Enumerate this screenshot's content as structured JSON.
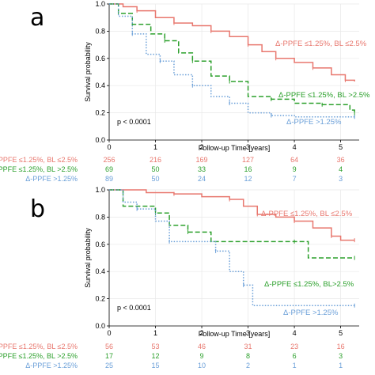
{
  "colors": {
    "bl_low": "#e8776e",
    "bl_high": "#2ca02c",
    "ppfe_high": "#6a9fd8"
  },
  "chart_data": [
    {
      "type": "line",
      "subtype": "kaplan-meier",
      "panel_label": "a",
      "xlabel": "Follow-up Time [years]",
      "ylabel": "Survival probability",
      "xlim": [
        0,
        5.4
      ],
      "ylim": [
        0,
        1.0
      ],
      "x_ticks": [
        0,
        1,
        2,
        3,
        4,
        5
      ],
      "y_ticks": [
        "0.0",
        "0.2",
        "0.4",
        "0.6",
        "0.8",
        "1.0"
      ],
      "annotation": "p < 0.0001",
      "grid": true,
      "series": [
        {
          "name": "Δ-PPFE ≤1.25%, BL ≤2.5%",
          "color_key": "bl_low",
          "style": "solid",
          "points": [
            [
              0,
              1.0
            ],
            [
              0.3,
              0.98
            ],
            [
              0.6,
              0.95
            ],
            [
              1.0,
              0.9
            ],
            [
              1.4,
              0.86
            ],
            [
              1.8,
              0.84
            ],
            [
              2.2,
              0.8
            ],
            [
              2.6,
              0.76
            ],
            [
              3.0,
              0.7
            ],
            [
              3.3,
              0.65
            ],
            [
              3.6,
              0.6
            ],
            [
              4.0,
              0.57
            ],
            [
              4.4,
              0.53
            ],
            [
              4.8,
              0.48
            ],
            [
              5.1,
              0.44
            ],
            [
              5.3,
              0.43
            ]
          ],
          "risk_label": "Δ-PPFE ≤1.25%, BL ≤2.5%",
          "at_risk": [
            256,
            216,
            169,
            127,
            64,
            36
          ]
        },
        {
          "name": "Δ-PPFE ≤1.25%, BL >2.5%",
          "color_key": "bl_high",
          "style": "dashed",
          "points": [
            [
              0,
              1.0
            ],
            [
              0.2,
              0.93
            ],
            [
              0.5,
              0.85
            ],
            [
              0.9,
              0.78
            ],
            [
              1.2,
              0.73
            ],
            [
              1.5,
              0.64
            ],
            [
              1.8,
              0.58
            ],
            [
              2.2,
              0.47
            ],
            [
              2.6,
              0.43
            ],
            [
              3.0,
              0.32
            ],
            [
              3.5,
              0.3
            ],
            [
              4.0,
              0.27
            ],
            [
              4.6,
              0.26
            ],
            [
              5.2,
              0.22
            ],
            [
              5.3,
              0.19
            ]
          ],
          "risk_label": "Δ-PPFE ≤1.25%, BL >2.5%",
          "at_risk": [
            69,
            50,
            33,
            16,
            9,
            4
          ]
        },
        {
          "name": "Δ-PPFE >1.25%",
          "color_key": "ppfe_high",
          "style": "dotted",
          "points": [
            [
              0,
              1.0
            ],
            [
              0.2,
              0.91
            ],
            [
              0.5,
              0.78
            ],
            [
              0.8,
              0.63
            ],
            [
              1.1,
              0.58
            ],
            [
              1.4,
              0.48
            ],
            [
              1.8,
              0.4
            ],
            [
              2.2,
              0.32
            ],
            [
              2.6,
              0.27
            ],
            [
              3.0,
              0.2
            ],
            [
              3.5,
              0.18
            ],
            [
              4.0,
              0.17
            ],
            [
              5.3,
              0.17
            ]
          ],
          "risk_label": "Δ-PPFE >1.25%",
          "at_risk": [
            89,
            50,
            24,
            12,
            7,
            3
          ]
        }
      ]
    },
    {
      "type": "line",
      "subtype": "kaplan-meier",
      "panel_label": "b",
      "xlabel": "Follow-up Time [years]",
      "ylabel": "Survival probability",
      "xlim": [
        0,
        5.4
      ],
      "ylim": [
        0,
        1.0
      ],
      "x_ticks": [
        0,
        1,
        2,
        3,
        4,
        5
      ],
      "y_ticks": [
        "0.0",
        "0.2",
        "0.4",
        "0.6",
        "0.8",
        "1.0"
      ],
      "annotation": "p < 0.0001",
      "grid": true,
      "series": [
        {
          "name": "Δ-PPFE ≤1.25%, BL ≤2.5%",
          "color_key": "bl_low",
          "style": "solid",
          "points": [
            [
              0,
              1.0
            ],
            [
              0.8,
              0.98
            ],
            [
              1.4,
              0.97
            ],
            [
              2.0,
              0.95
            ],
            [
              2.6,
              0.93
            ],
            [
              2.9,
              0.88
            ],
            [
              3.2,
              0.82
            ],
            [
              3.6,
              0.8
            ],
            [
              4.0,
              0.77
            ],
            [
              4.4,
              0.72
            ],
            [
              4.8,
              0.66
            ],
            [
              5.0,
              0.63
            ],
            [
              5.3,
              0.63
            ]
          ],
          "risk_label": "Δ-PPFE ≤1.25%, BL ≤2.5%",
          "at_risk": [
            56,
            53,
            46,
            31,
            23,
            16
          ]
        },
        {
          "name": "Δ-PPFE ≤1.25%, BL>2.5%",
          "color_key": "bl_high",
          "style": "dashed",
          "points": [
            [
              0,
              1.0
            ],
            [
              0.3,
              0.88
            ],
            [
              1.0,
              0.83
            ],
            [
              1.3,
              0.74
            ],
            [
              1.7,
              0.69
            ],
            [
              2.2,
              0.62
            ],
            [
              4.0,
              0.62
            ],
            [
              4.3,
              0.5
            ],
            [
              5.3,
              0.5
            ]
          ],
          "risk_label": "Δ-PPFE ≤1.25%, BL >2.5%",
          "at_risk": [
            17,
            12,
            9,
            8,
            6,
            3
          ]
        },
        {
          "name": "Δ-PPFE >1.25%",
          "color_key": "ppfe_high",
          "style": "dotted",
          "points": [
            [
              0,
              1.0
            ],
            [
              0.3,
              0.91
            ],
            [
              0.6,
              0.86
            ],
            [
              1.0,
              0.77
            ],
            [
              1.3,
              0.62
            ],
            [
              2.0,
              0.62
            ],
            [
              2.3,
              0.55
            ],
            [
              2.6,
              0.4
            ],
            [
              2.9,
              0.3
            ],
            [
              3.1,
              0.15
            ],
            [
              5.3,
              0.15
            ]
          ],
          "risk_label": "Δ-PPFE >1.25%",
          "at_risk": [
            25,
            15,
            10,
            2,
            1,
            1
          ]
        }
      ]
    }
  ]
}
